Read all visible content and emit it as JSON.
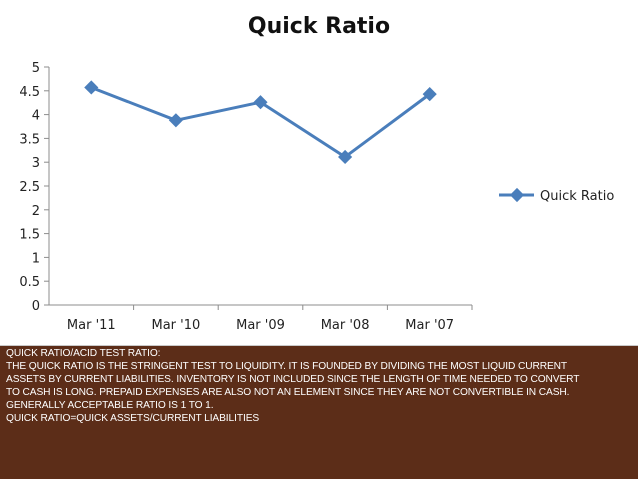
{
  "chart_data": {
    "type": "line",
    "title": "Quick Ratio",
    "categories": [
      "Mar '11",
      "Mar '10",
      "Mar '09",
      "Mar '08",
      "Mar '07"
    ],
    "series": [
      {
        "name": "Quick Ratio",
        "values": [
          4.57,
          3.88,
          4.26,
          3.11,
          4.43
        ],
        "color": "#4a7ebb"
      }
    ],
    "ylim": [
      0,
      5
    ],
    "yticks": [
      "0",
      "0.5",
      "1",
      "1.5",
      "2",
      "2.5",
      "3",
      "3.5",
      "4",
      "4.5",
      "5"
    ],
    "grid": false,
    "legend": "right"
  },
  "text_block": {
    "lines": [
      "QUICK RATIO/ACID TEST RATIO:",
      "THE QUICK RATIO IS THE STRINGENT TEST TO LIQUIDITY. IT IS FOUNDED BY DIVIDING THE MOST LIQUID CURRENT",
      "ASSETS BY CURRENT LIABILITIES. INVENTORY IS NOT INCLUDED SINCE THE LENGTH OF TIME NEEDED TO CONVERT",
      "TO CASH IS LONG. PREPAID EXPENSES ARE ALSO NOT AN ELEMENT SINCE THEY ARE NOT CONVERTIBLE IN CASH.",
      "GENERALLY ACCEPTABLE RATIO IS 1 TO 1.",
      "QUICK RATIO=QUICK ASSETS/CURRENT LIABILITIES"
    ]
  },
  "colors": {
    "background": "#5c2d18",
    "panel": "#ffffff",
    "series": "#4a7ebb",
    "axis": "#8c8c8c"
  }
}
